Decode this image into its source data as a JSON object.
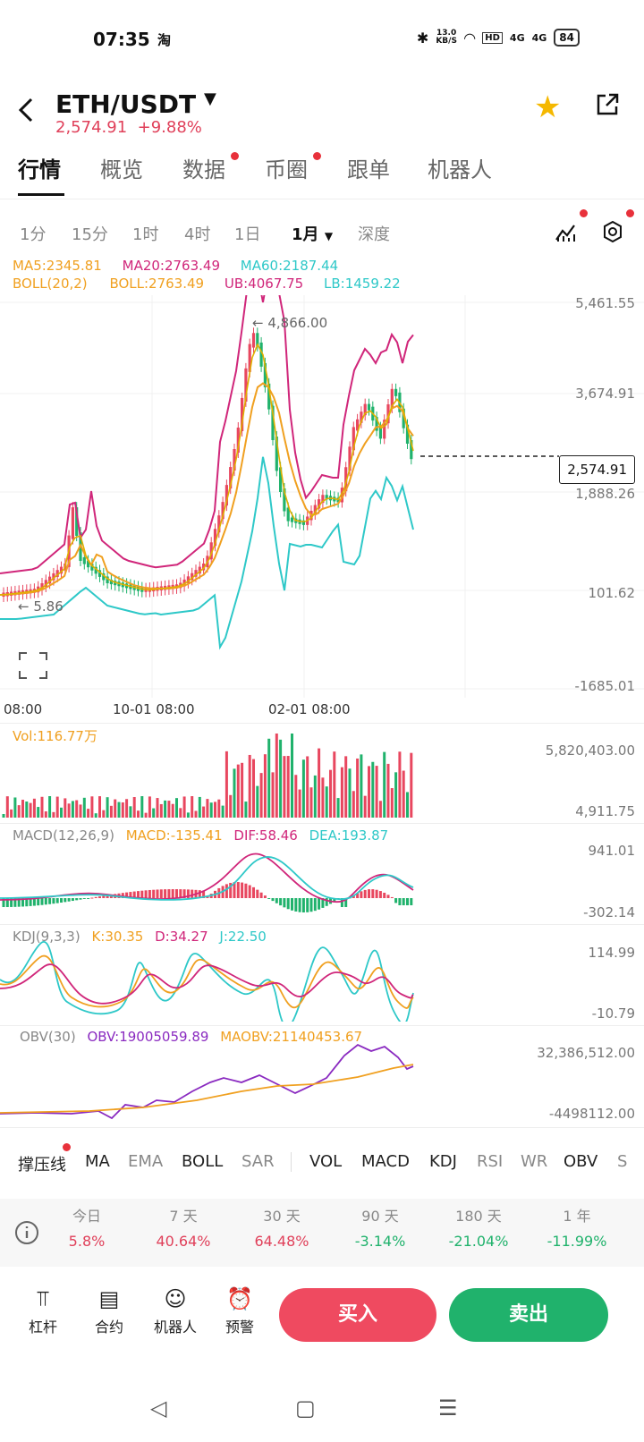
{
  "status_bar": {
    "time": "07:35",
    "app_icon": "淘",
    "net_speed_value": "13.0",
    "net_speed_unit": "KB/S",
    "hd": "HD",
    "signal1": "4G",
    "signal2": "4G",
    "battery": "84"
  },
  "header": {
    "pair": "ETH/USDT",
    "price": "2,574.91",
    "change": "+9.88%",
    "icons": [
      "back-icon",
      "caret-down-icon",
      "star-icon",
      "share-icon"
    ]
  },
  "tabs": [
    {
      "label": "行情",
      "active": true
    },
    {
      "label": "概览"
    },
    {
      "label": "数据",
      "dot": true
    },
    {
      "label": "币圈",
      "dot": true
    },
    {
      "label": "跟单"
    },
    {
      "label": "机器人"
    }
  ],
  "intervals": [
    "1分",
    "15分",
    "1时",
    "4时",
    "1日",
    "1月",
    "深度"
  ],
  "active_interval": "1月",
  "indicators_top": {
    "ma5": "MA5:2345.81",
    "ma20": "MA20:2763.49",
    "ma60": "MA60:2187.44",
    "boll": "BOLL(20,2)",
    "boll_mid": "BOLL:2763.49",
    "ub": "UB:4067.75",
    "lb": "LB:1459.22"
  },
  "main_axis": [
    "5,461.55",
    "3,674.91",
    "1,888.26",
    "101.62",
    "-1685.01"
  ],
  "high_marker": "← 4,866.00",
  "low_marker": "← 5.86",
  "current_price_box": "2,574.91",
  "time_axis": [
    "08:00",
    "10-01 08:00",
    "02-01 08:00"
  ],
  "vol": {
    "label": "Vol:116.77万",
    "axis": [
      "5,820,403.00",
      "4,911.75"
    ]
  },
  "macd": {
    "title": "MACD(12,26,9)",
    "macd": "MACD:-135.41",
    "dif": "DIF:58.46",
    "dea": "DEA:193.87",
    "axis": [
      "941.01",
      "-302.14"
    ]
  },
  "kdj": {
    "title": "KDJ(9,3,3)",
    "k": "K:30.35",
    "d": "D:34.27",
    "j": "J:22.50",
    "axis": [
      "114.99",
      "-10.79"
    ]
  },
  "obv": {
    "title": "OBV(30)",
    "obv": "OBV:19005059.89",
    "maobv": "MAOBV:21140453.67",
    "axis": [
      "32,386,512.00",
      "-4498112.00"
    ]
  },
  "indicator_tabs": [
    "撑压线",
    "MA",
    "EMA",
    "BOLL",
    "SAR",
    "VOL",
    "MACD",
    "KDJ",
    "RSI",
    "WR",
    "OBV",
    "S"
  ],
  "performance": [
    {
      "label": "今日",
      "value": "5.8%"
    },
    {
      "label": "7 天",
      "value": "40.64%"
    },
    {
      "label": "30 天",
      "value": "64.48%"
    },
    {
      "label": "90 天",
      "value": "-3.14%"
    },
    {
      "label": "180 天",
      "value": "-21.04%"
    },
    {
      "label": "1 年",
      "value": "-11.99%"
    }
  ],
  "bottom_bar": [
    {
      "label": "杠杆",
      "icon": "leverage-icon"
    },
    {
      "label": "合约",
      "icon": "contract-icon"
    },
    {
      "label": "机器人",
      "icon": "robot-icon"
    },
    {
      "label": "预警",
      "icon": "alert-icon"
    }
  ],
  "buy_label": "买入",
  "sell_label": "卖出",
  "colors": {
    "up": "#e8475f",
    "down": "#20b26c",
    "ma5": "#f0a020",
    "ma20": "#d0267a",
    "ma60": "#2ec8c8"
  },
  "chart_data": {
    "type": "candlestick",
    "description_series": "monthly ETH/USDT candles",
    "ylim": [
      -1685.01,
      5461.55
    ],
    "y_ticks": [
      5461.55,
      3674.91,
      1888.26,
      101.62,
      -1685.01
    ],
    "current": 2574.91,
    "high": 4866.0,
    "low": 5.86
  }
}
